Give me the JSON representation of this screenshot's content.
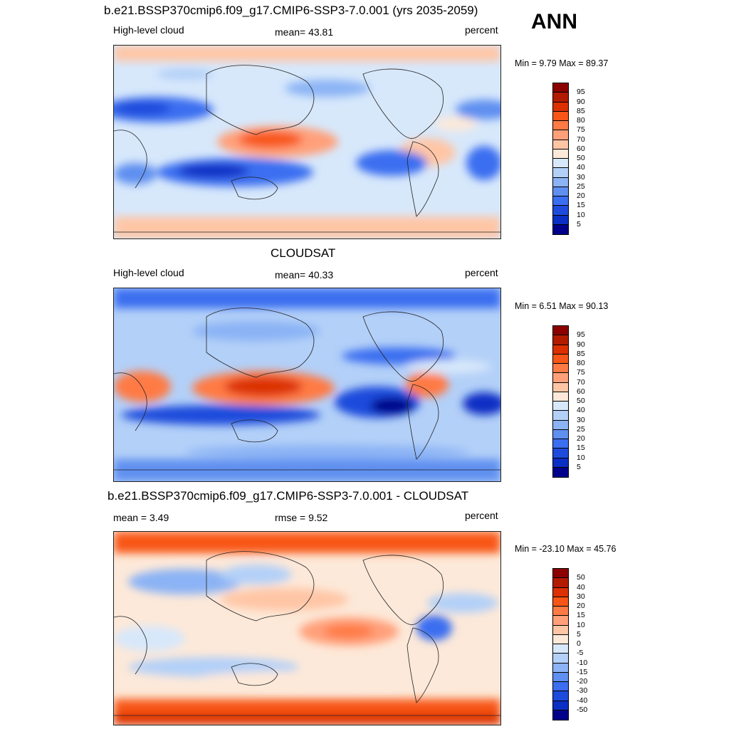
{
  "season": "ANN",
  "panels": [
    {
      "id": "model",
      "title": "b.e21.BSSP370cmip6.f09_g17.CMIP6-SSP3-7.0.001 (yrs 2035-2059)",
      "left_label": "High-level cloud",
      "center_label": "mean=  43.81",
      "right_label": "percent",
      "minmax": "Min =   9.79 Max =  89.37",
      "colorbar": {
        "colors": [
          "#8b0000",
          "#b31b00",
          "#dc3000",
          "#f85618",
          "#ff7a44",
          "#ffa07a",
          "#ffc6a6",
          "#fde9d9",
          "#d7e8fb",
          "#b3d0f8",
          "#8bb3f5",
          "#5f8ff0",
          "#3b6ef0",
          "#1f4bdc",
          "#0b2fc4",
          "#00008b"
        ],
        "ticks": [
          "95",
          "90",
          "85",
          "80",
          "75",
          "70",
          "60",
          "50",
          "40",
          "30",
          "25",
          "20",
          "15",
          "10",
          "5"
        ]
      }
    },
    {
      "id": "obs",
      "title": "CLOUDSAT",
      "left_label": "High-level cloud",
      "center_label": "mean=  40.33",
      "right_label": "percent",
      "minmax": "Min =   6.51 Max =  90.13",
      "colorbar": {
        "colors": [
          "#8b0000",
          "#b31b00",
          "#dc3000",
          "#f85618",
          "#ff7a44",
          "#ffa07a",
          "#ffc6a6",
          "#fde9d9",
          "#d7e8fb",
          "#b3d0f8",
          "#8bb3f5",
          "#5f8ff0",
          "#3b6ef0",
          "#1f4bdc",
          "#0b2fc4",
          "#00008b"
        ],
        "ticks": [
          "95",
          "90",
          "85",
          "80",
          "75",
          "70",
          "60",
          "50",
          "40",
          "30",
          "25",
          "20",
          "15",
          "10",
          "5"
        ]
      }
    },
    {
      "id": "diff",
      "title": "b.e21.BSSP370cmip6.f09_g17.CMIP6-SSP3-7.0.001 - CLOUDSAT",
      "left_label": "mean =   3.49",
      "center_label": "rmse =   9.52",
      "right_label": "percent",
      "minmax": "Min = -23.10 Max =  45.76",
      "colorbar": {
        "colors": [
          "#8b0000",
          "#b31b00",
          "#dc3000",
          "#f85618",
          "#ff7a44",
          "#ffa07a",
          "#ffc6a6",
          "#fde9d9",
          "#d7e8fb",
          "#b3d0f8",
          "#8bb3f5",
          "#5f8ff0",
          "#3b6ef0",
          "#1f4bdc",
          "#0b2fc4",
          "#00008b"
        ],
        "ticks": [
          "50",
          "40",
          "30",
          "20",
          "15",
          "10",
          "5",
          "0",
          "-5",
          "-10",
          "-15",
          "-20",
          "-30",
          "-40",
          "-50"
        ]
      }
    }
  ]
}
